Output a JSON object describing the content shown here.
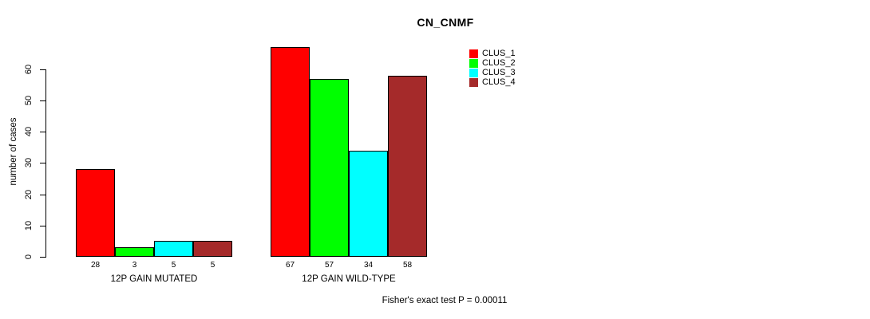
{
  "chart_data": {
    "type": "bar",
    "title": "CN_CNMF",
    "xlabel": "",
    "ylabel": "number of cases",
    "ylim": [
      0,
      60
    ],
    "yticks": [
      0,
      10,
      20,
      30,
      40,
      50,
      60
    ],
    "grid": false,
    "legend_position": "top-right",
    "categories": [
      "12P GAIN MUTATED",
      "12P GAIN WILD-TYPE"
    ],
    "series": [
      {
        "name": "CLUS_1",
        "color": "#ff0000",
        "values": [
          28,
          67
        ]
      },
      {
        "name": "CLUS_2",
        "color": "#00ff00",
        "values": [
          3,
          57
        ]
      },
      {
        "name": "CLUS_3",
        "color": "#00ffff",
        "values": [
          5,
          34
        ]
      },
      {
        "name": "CLUS_4",
        "color": "#a52a2a",
        "values": [
          5,
          58
        ]
      }
    ],
    "bar_value_labels": [
      [
        28,
        3,
        5,
        5
      ],
      [
        67,
        57,
        34,
        58
      ]
    ],
    "annotation": "Fisher's exact test P = 0.00011"
  }
}
